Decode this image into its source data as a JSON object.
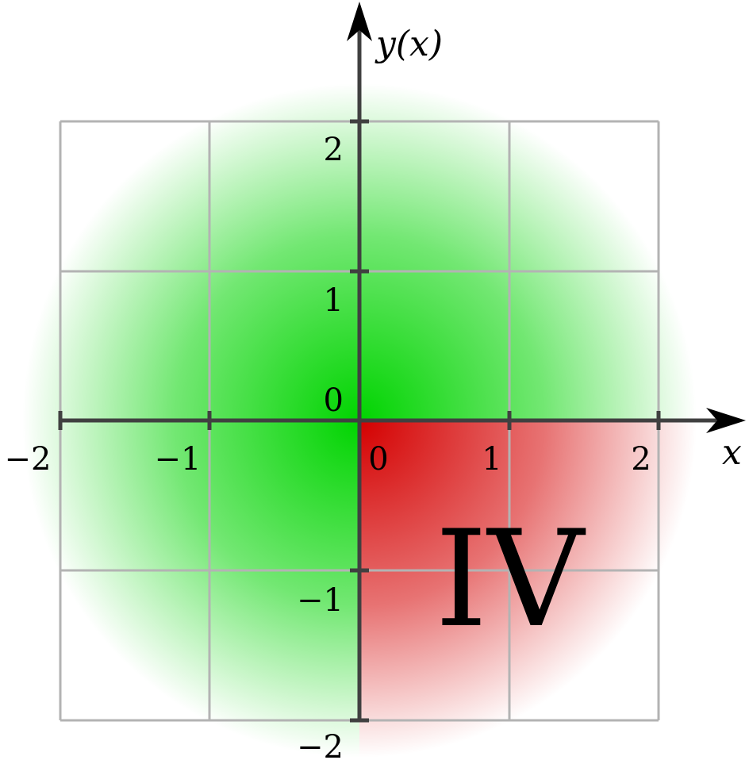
{
  "axes": {
    "x_title": "x",
    "y_title": "y(x)",
    "origin_label": "0",
    "x_ticks": [
      "−2",
      "−1",
      "0",
      "1",
      "2"
    ],
    "y_ticks": [
      "−2",
      "−1",
      "1",
      "2"
    ],
    "x_range": [
      -2,
      2
    ],
    "y_range": [
      -2,
      2
    ],
    "grid": true
  },
  "regions": {
    "background_colors": {
      "green": "#00d400",
      "red": "#d40000",
      "grid": "#b3b3b3",
      "axis": "#404040"
    },
    "highlighted_quadrant": "IV"
  },
  "annotations": {
    "quadrant_label": "IV"
  }
}
